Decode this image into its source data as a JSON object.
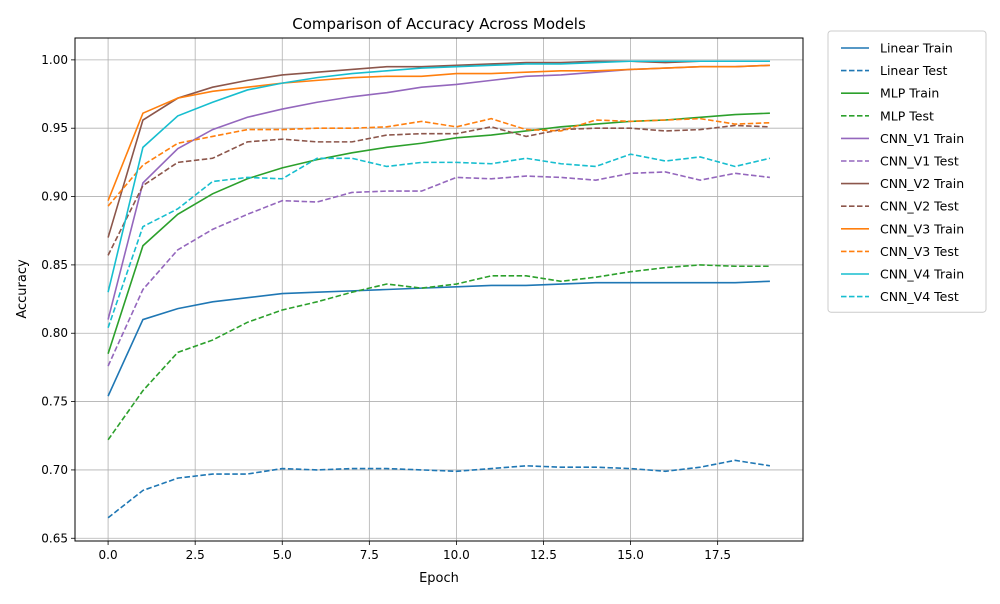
{
  "chart_data": {
    "type": "line",
    "title": "Comparison of Accuracy Across Models",
    "xlabel": "Epoch",
    "ylabel": "Accuracy",
    "xlim": [
      -0.95,
      19.95
    ],
    "ylim": [
      0.648,
      1.016
    ],
    "xticks": [
      0.0,
      2.5,
      5.0,
      7.5,
      10.0,
      12.5,
      15.0,
      17.5
    ],
    "xtick_labels": [
      "0.0",
      "2.5",
      "5.0",
      "7.5",
      "10.0",
      "12.5",
      "15.0",
      "17.5"
    ],
    "yticks": [
      0.65,
      0.7,
      0.75,
      0.8,
      0.85,
      0.9,
      0.95,
      1.0
    ],
    "ytick_labels": [
      "0.65",
      "0.70",
      "0.75",
      "0.80",
      "0.85",
      "0.90",
      "0.95",
      "1.00"
    ],
    "grid": true,
    "legend_position": "outside-top-right",
    "x": [
      0,
      1,
      2,
      3,
      4,
      5,
      6,
      7,
      8,
      9,
      10,
      11,
      12,
      13,
      14,
      15,
      16,
      17,
      18,
      19
    ],
    "series": [
      {
        "name": "Linear Train",
        "color": "#1f77b4",
        "dash": "solid",
        "values": [
          0.754,
          0.81,
          0.818,
          0.823,
          0.826,
          0.829,
          0.83,
          0.831,
          0.832,
          0.833,
          0.834,
          0.835,
          0.835,
          0.836,
          0.837,
          0.837,
          0.837,
          0.837,
          0.837,
          0.838
        ]
      },
      {
        "name": "Linear Test",
        "color": "#1f77b4",
        "dash": "dashed",
        "values": [
          0.665,
          0.685,
          0.694,
          0.697,
          0.697,
          0.701,
          0.7,
          0.701,
          0.701,
          0.7,
          0.699,
          0.701,
          0.703,
          0.702,
          0.702,
          0.701,
          0.699,
          0.702,
          0.707,
          0.703
        ]
      },
      {
        "name": "MLP Train",
        "color": "#2ca02c",
        "dash": "solid",
        "values": [
          0.785,
          0.864,
          0.887,
          0.902,
          0.913,
          0.921,
          0.927,
          0.932,
          0.936,
          0.939,
          0.943,
          0.945,
          0.948,
          0.951,
          0.953,
          0.955,
          0.956,
          0.958,
          0.96,
          0.961
        ]
      },
      {
        "name": "MLP Test",
        "color": "#2ca02c",
        "dash": "dashed",
        "values": [
          0.722,
          0.758,
          0.786,
          0.795,
          0.808,
          0.817,
          0.823,
          0.83,
          0.836,
          0.833,
          0.836,
          0.842,
          0.842,
          0.838,
          0.841,
          0.845,
          0.848,
          0.85,
          0.849,
          0.849
        ]
      },
      {
        "name": "CNN_V1 Train",
        "color": "#9467bd",
        "dash": "solid",
        "values": [
          0.81,
          0.91,
          0.935,
          0.949,
          0.958,
          0.964,
          0.969,
          0.973,
          0.976,
          0.98,
          0.982,
          0.985,
          0.988,
          0.989,
          0.991,
          0.993,
          0.994,
          0.995,
          0.995,
          0.996
        ]
      },
      {
        "name": "CNN_V1 Test",
        "color": "#9467bd",
        "dash": "dashed",
        "values": [
          0.776,
          0.832,
          0.861,
          0.876,
          0.887,
          0.897,
          0.896,
          0.903,
          0.904,
          0.904,
          0.914,
          0.913,
          0.915,
          0.914,
          0.912,
          0.917,
          0.918,
          0.912,
          0.917,
          0.914
        ]
      },
      {
        "name": "CNN_V2 Train",
        "color": "#8c564b",
        "dash": "solid",
        "values": [
          0.87,
          0.956,
          0.972,
          0.98,
          0.985,
          0.989,
          0.991,
          0.993,
          0.995,
          0.995,
          0.996,
          0.997,
          0.998,
          0.998,
          0.999,
          0.999,
          0.998,
          0.999,
          0.999,
          0.999
        ]
      },
      {
        "name": "CNN_V2 Test",
        "color": "#8c564b",
        "dash": "dashed",
        "values": [
          0.857,
          0.908,
          0.925,
          0.928,
          0.94,
          0.942,
          0.94,
          0.94,
          0.945,
          0.946,
          0.946,
          0.951,
          0.944,
          0.949,
          0.95,
          0.95,
          0.948,
          0.949,
          0.952,
          0.951
        ]
      },
      {
        "name": "CNN_V3 Train",
        "color": "#ff7f0e",
        "dash": "solid",
        "values": [
          0.897,
          0.961,
          0.972,
          0.977,
          0.98,
          0.983,
          0.985,
          0.987,
          0.988,
          0.988,
          0.99,
          0.99,
          0.991,
          0.992,
          0.992,
          0.993,
          0.994,
          0.995,
          0.995,
          0.996
        ]
      },
      {
        "name": "CNN_V3 Test",
        "color": "#ff7f0e",
        "dash": "dashed",
        "values": [
          0.893,
          0.923,
          0.939,
          0.944,
          0.949,
          0.949,
          0.95,
          0.95,
          0.951,
          0.955,
          0.951,
          0.957,
          0.949,
          0.948,
          0.956,
          0.955,
          0.956,
          0.957,
          0.953,
          0.954
        ]
      },
      {
        "name": "CNN_V4 Train",
        "color": "#17becf",
        "dash": "solid",
        "values": [
          0.83,
          0.936,
          0.959,
          0.969,
          0.978,
          0.983,
          0.987,
          0.99,
          0.992,
          0.994,
          0.995,
          0.996,
          0.997,
          0.997,
          0.998,
          0.999,
          0.999,
          0.999,
          0.999,
          0.999
        ]
      },
      {
        "name": "CNN_V4 Test",
        "color": "#17becf",
        "dash": "dashed",
        "values": [
          0.804,
          0.878,
          0.891,
          0.911,
          0.914,
          0.913,
          0.928,
          0.928,
          0.922,
          0.925,
          0.925,
          0.924,
          0.928,
          0.924,
          0.922,
          0.931,
          0.926,
          0.929,
          0.922,
          0.928
        ]
      }
    ]
  }
}
